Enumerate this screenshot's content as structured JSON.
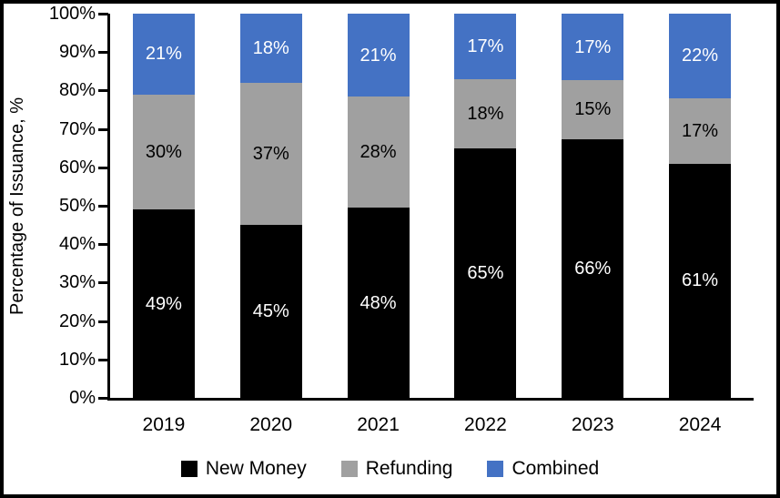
{
  "chart_data": {
    "type": "bar",
    "stacked": true,
    "percent_stacked": true,
    "title": "",
    "xlabel": "",
    "ylabel": "Percentage of Issuance, %",
    "categories": [
      "2019",
      "2020",
      "2021",
      "2022",
      "2023",
      "2024"
    ],
    "series": [
      {
        "name": "New Money",
        "color": "#000000",
        "label_color": "#ffffff",
        "values": [
          49,
          45,
          48,
          65,
          66,
          61
        ],
        "labels": [
          "49%",
          "45%",
          "48%",
          "65%",
          "66%",
          "61%"
        ]
      },
      {
        "name": "Refunding",
        "color": "#A0A0A0",
        "label_color": "#000000",
        "values": [
          30,
          37,
          28,
          18,
          15,
          17
        ],
        "labels": [
          "30%",
          "37%",
          "28%",
          "18%",
          "15%",
          "17%"
        ]
      },
      {
        "name": "Combined",
        "color": "#4472C4",
        "label_color": "#ffffff",
        "values": [
          21,
          18,
          21,
          17,
          17,
          22
        ],
        "labels": [
          "21%",
          "18%",
          "21%",
          "17%",
          "17%",
          "22%"
        ]
      }
    ],
    "ylim": [
      0,
      100
    ],
    "yticks": [
      "0%",
      "10%",
      "20%",
      "30%",
      "40%",
      "50%",
      "60%",
      "70%",
      "80%",
      "90%",
      "100%"
    ],
    "grid": false,
    "legend_position": "bottom",
    "axis_color": "#000000",
    "background_color": "#ffffff",
    "border_color": "#000000"
  }
}
